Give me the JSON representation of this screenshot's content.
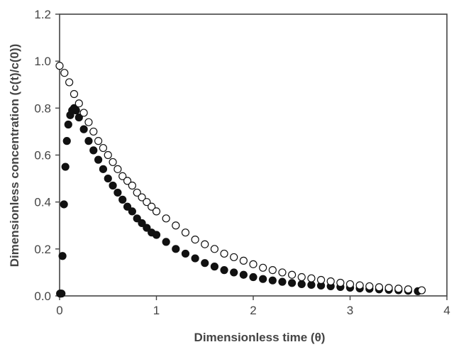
{
  "chart_data": {
    "type": "scatter",
    "title": "",
    "xlabel": "Dimensionless time (θ)",
    "ylabel": "Dimensionless concentration (c(t)/c(0))",
    "xlim": [
      0,
      4
    ],
    "ylim": [
      0,
      1.2
    ],
    "x_ticks": [
      "0",
      "1",
      "2",
      "3",
      "4"
    ],
    "y_ticks": [
      "0.0",
      "0.2",
      "0.4",
      "0.6",
      "0.8",
      "1.0",
      "1.2"
    ],
    "grid": false,
    "legend": "none",
    "series": [
      {
        "marker": "filled-circle",
        "color": "#111111",
        "x": [
          0.005,
          0.01,
          0.02,
          0.03,
          0.045,
          0.06,
          0.075,
          0.09,
          0.11,
          0.13,
          0.15,
          0.17,
          0.2,
          0.25,
          0.3,
          0.35,
          0.4,
          0.45,
          0.5,
          0.55,
          0.6,
          0.65,
          0.7,
          0.75,
          0.8,
          0.85,
          0.9,
          0.95,
          1.0,
          1.1,
          1.2,
          1.3,
          1.4,
          1.5,
          1.6,
          1.7,
          1.8,
          1.9,
          2.0,
          2.1,
          2.2,
          2.3,
          2.4,
          2.5,
          2.6,
          2.7,
          2.8,
          2.9,
          3.0,
          3.1,
          3.2,
          3.3,
          3.4,
          3.5,
          3.6,
          3.7
        ],
        "y": [
          0.01,
          0.01,
          0.01,
          0.17,
          0.39,
          0.55,
          0.66,
          0.73,
          0.77,
          0.79,
          0.8,
          0.79,
          0.76,
          0.71,
          0.66,
          0.62,
          0.58,
          0.54,
          0.5,
          0.47,
          0.44,
          0.41,
          0.38,
          0.36,
          0.33,
          0.31,
          0.29,
          0.27,
          0.26,
          0.23,
          0.2,
          0.18,
          0.16,
          0.14,
          0.125,
          0.11,
          0.1,
          0.09,
          0.08,
          0.072,
          0.066,
          0.06,
          0.055,
          0.05,
          0.047,
          0.044,
          0.041,
          0.038,
          0.035,
          0.032,
          0.03,
          0.028,
          0.026,
          0.024,
          0.022,
          0.02
        ]
      },
      {
        "marker": "open-circle",
        "color": "#111111",
        "x": [
          0.0,
          0.05,
          0.1,
          0.15,
          0.2,
          0.25,
          0.3,
          0.35,
          0.4,
          0.45,
          0.5,
          0.55,
          0.6,
          0.65,
          0.7,
          0.75,
          0.8,
          0.85,
          0.9,
          0.95,
          1.0,
          1.1,
          1.2,
          1.3,
          1.4,
          1.5,
          1.6,
          1.7,
          1.8,
          1.9,
          2.0,
          2.1,
          2.2,
          2.3,
          2.4,
          2.5,
          2.6,
          2.7,
          2.8,
          2.9,
          3.0,
          3.1,
          3.2,
          3.3,
          3.4,
          3.5,
          3.6,
          3.74
        ],
        "y": [
          0.98,
          0.95,
          0.91,
          0.86,
          0.82,
          0.78,
          0.74,
          0.7,
          0.66,
          0.63,
          0.6,
          0.57,
          0.54,
          0.51,
          0.49,
          0.47,
          0.44,
          0.42,
          0.4,
          0.38,
          0.36,
          0.33,
          0.3,
          0.27,
          0.24,
          0.22,
          0.2,
          0.18,
          0.165,
          0.15,
          0.135,
          0.12,
          0.11,
          0.1,
          0.09,
          0.08,
          0.075,
          0.068,
          0.062,
          0.056,
          0.05,
          0.045,
          0.041,
          0.037,
          0.034,
          0.031,
          0.028,
          0.024
        ]
      }
    ]
  }
}
